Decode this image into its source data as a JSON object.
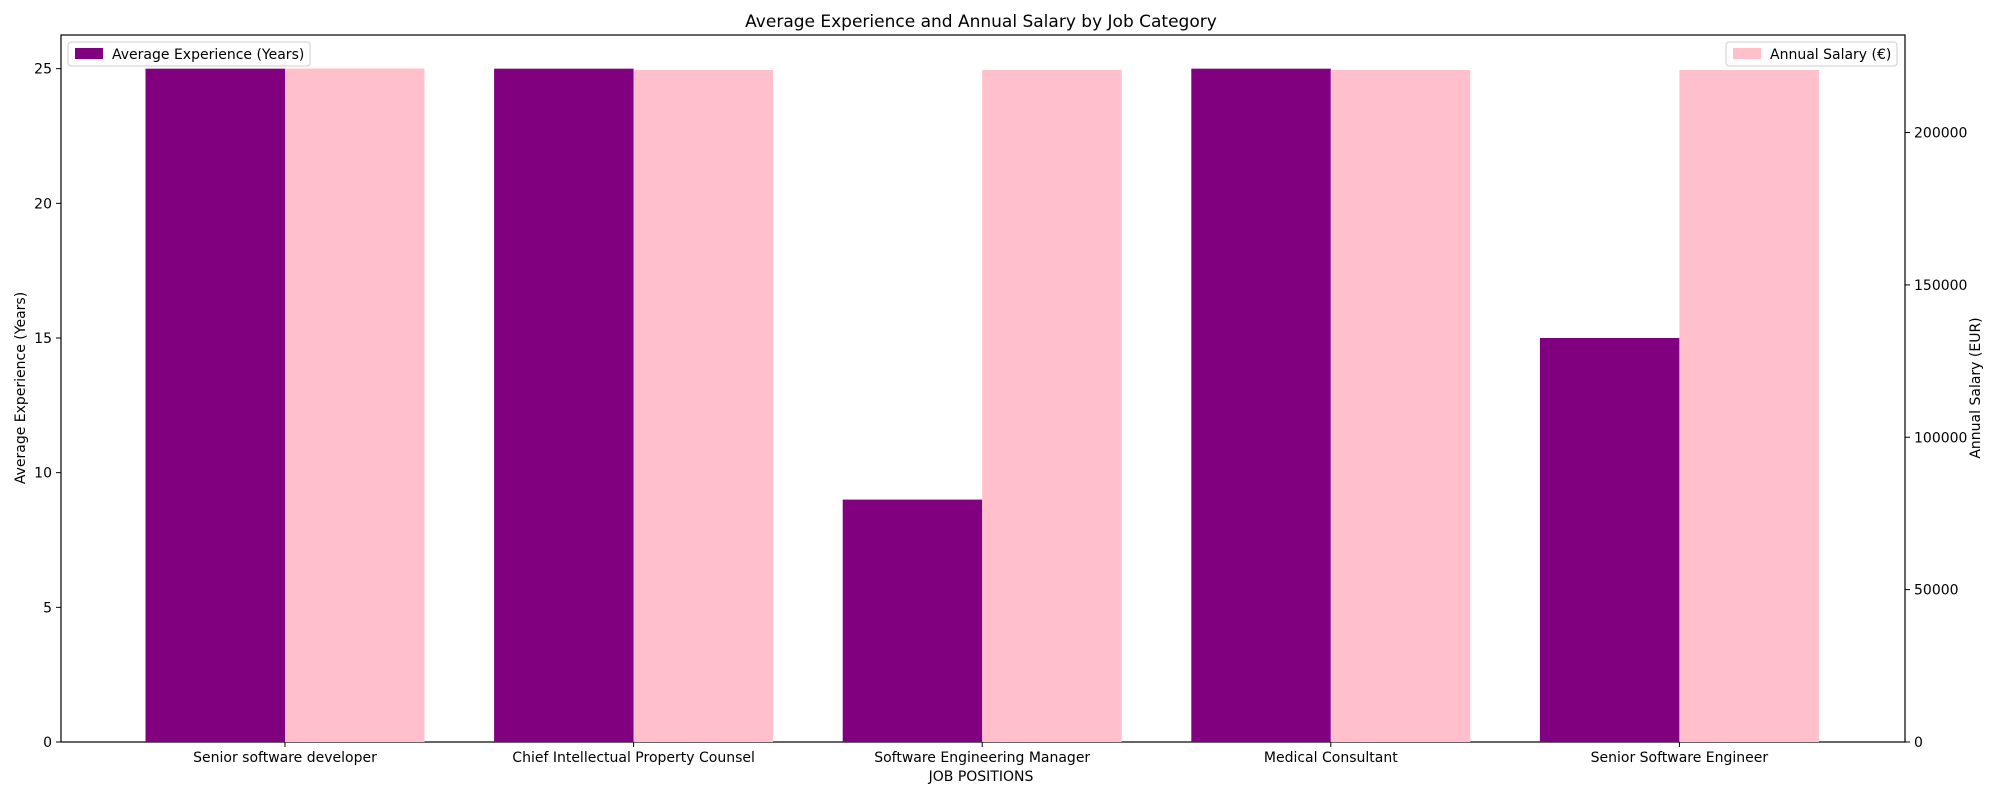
{
  "chart_data": {
    "type": "bar",
    "title": "Average Experience and Annual Salary by Job Category",
    "xlabel": "JOB POSITIONS",
    "categories": [
      "Senior software developer",
      "Chief Intellectual Property Counsel",
      "Software Engineering Manager",
      "Medical Consultant",
      "Senior Software Engineer"
    ],
    "series": [
      {
        "name": "Average Experience (Years)",
        "axis": "left",
        "color": "#800080",
        "values": [
          25,
          25,
          9,
          25,
          15
        ]
      },
      {
        "name": "Annual Salary (€)",
        "axis": "right",
        "color": "#ffc0cb",
        "values": [
          221000,
          220500,
          220500,
          220500,
          220500
        ]
      }
    ],
    "left_axis": {
      "label": "Average Experience (Years)",
      "ylim": [
        0,
        26.25
      ],
      "ticks": [
        "0",
        "5",
        "10",
        "15",
        "20",
        "25"
      ]
    },
    "right_axis": {
      "label": "Annual Salary (EUR)",
      "ylim": [
        0,
        232000
      ],
      "ticks": [
        "0",
        "50000",
        "100000",
        "150000",
        "200000"
      ]
    },
    "legend": [
      {
        "label": "Average Experience (Years)",
        "placement": "top-left"
      },
      {
        "label": "Annual Salary (€)",
        "placement": "top-right"
      }
    ],
    "grid": false
  }
}
